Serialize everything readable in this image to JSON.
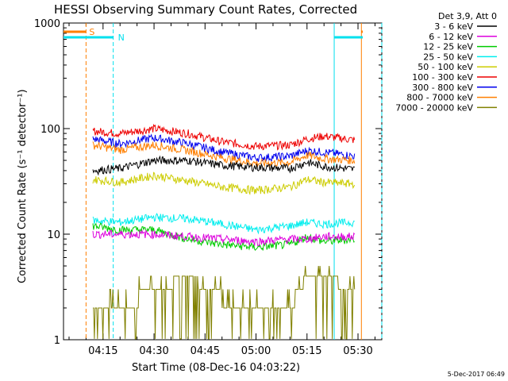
{
  "chart_data": {
    "type": "line",
    "title": "HESSI Observing Summary Count Rates, Corrected",
    "xlabel": "Start Time (08-Dec-16 04:03:22)",
    "ylabel": "Corrected Count Rate (s⁻¹ detector⁻¹)",
    "y_scale": "log",
    "ylim": [
      1,
      1000
    ],
    "xlim": [
      "04:03:22",
      "05:37:00"
    ],
    "yticks": [
      "1",
      "10",
      "100",
      "1000"
    ],
    "xticks": [
      "04:15",
      "04:30",
      "04:45",
      "05:00",
      "05:15",
      "05:30"
    ],
    "legend_title": "Det 3,9, Att 0",
    "legend_position": "right",
    "grid": false,
    "x": [
      "04:12:00",
      "04:20:00",
      "04:30:00",
      "04:40:00",
      "04:50:00",
      "05:00:00",
      "05:10:00",
      "05:15:00",
      "05:20:00",
      "05:29:00"
    ],
    "series": [
      {
        "name": "3 - 6 keV",
        "color": "#000000",
        "values": [
          40,
          42,
          50,
          50,
          45,
          43,
          42,
          48,
          44,
          41
        ]
      },
      {
        "name": "6 - 12 keV",
        "color": "#dd00dd",
        "values": [
          10,
          10,
          10,
          9.5,
          9,
          8.5,
          9,
          9,
          9.5,
          9.5
        ]
      },
      {
        "name": "12 - 25 keV",
        "color": "#00cc00",
        "values": [
          12,
          11,
          11,
          9,
          8,
          7.5,
          8,
          9.5,
          8.5,
          9
        ]
      },
      {
        "name": "25 - 50 keV",
        "color": "#00eeee",
        "values": [
          13.5,
          13,
          14.5,
          14,
          12.5,
          11,
          12,
          13,
          12.5,
          13
        ]
      },
      {
        "name": "50 - 100 keV",
        "color": "#cccc00",
        "values": [
          33,
          31,
          36,
          32,
          28,
          26,
          28,
          33,
          31,
          30
        ]
      },
      {
        "name": "100 - 300 keV",
        "color": "#ee0000",
        "values": [
          95,
          90,
          100,
          90,
          75,
          68,
          70,
          80,
          85,
          78
        ]
      },
      {
        "name": "300 - 800 keV",
        "color": "#0000ee",
        "values": [
          80,
          72,
          82,
          72,
          60,
          53,
          55,
          62,
          60,
          55
        ]
      },
      {
        "name": "800 - 7000 keV",
        "color": "#ff7f00",
        "values": [
          70,
          63,
          70,
          62,
          53,
          47,
          48,
          56,
          52,
          50
        ]
      },
      {
        "name": "7000 - 20000 keV",
        "color": "#808000",
        "values": [
          2,
          2,
          3,
          4,
          2.5,
          2,
          2,
          4,
          4,
          3
        ]
      }
    ],
    "annotations": {
      "s_label": "S",
      "n_label": "N",
      "markers": [
        {
          "kind": "saa",
          "color": "#ff7f00",
          "style": "dashed",
          "time": "04:10:00"
        },
        {
          "kind": "night",
          "color": "#00e0ee",
          "style": "dashed",
          "time": "04:18:00"
        },
        {
          "kind": "night",
          "color": "#00e0ee",
          "style": "solid",
          "time": "05:23:00"
        },
        {
          "kind": "saa",
          "color": "#ff7f00",
          "style": "solid",
          "time": "05:31:00"
        },
        {
          "kind": "saa",
          "color": "#ff7f00",
          "style": "dashed",
          "time": "05:37:00"
        },
        {
          "kind": "night",
          "color": "#00e0ee",
          "style": "dashed",
          "time": "05:37:00"
        }
      ]
    },
    "footer": "5-Dec-2017 06:49"
  }
}
